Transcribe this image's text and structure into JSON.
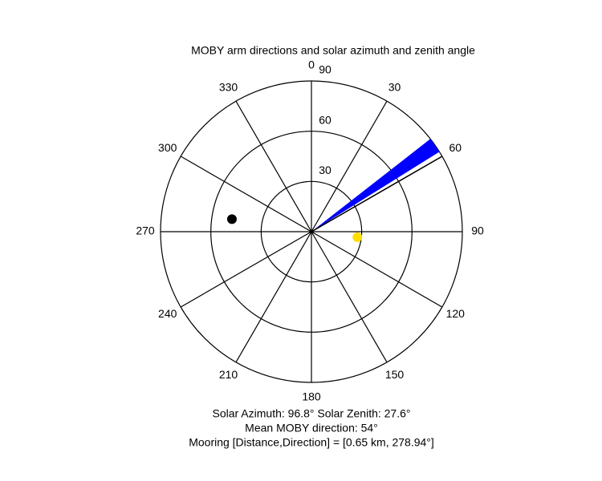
{
  "chart_data": {
    "type": "polar",
    "title": "MOBY arm directions and solar azimuth and zenith angle",
    "zero": "top",
    "direction": "clockwise",
    "rlim": [
      0,
      90
    ],
    "rticks": [
      30,
      60,
      90
    ],
    "thetaticks": [
      0,
      30,
      60,
      90,
      120,
      150,
      180,
      210,
      240,
      270,
      300,
      330
    ],
    "sector": {
      "theta": [
        52,
        58
      ],
      "color": "#0000ff"
    },
    "line": {
      "theta": 60,
      "color": "#000000"
    },
    "points": [
      {
        "theta": 278.94,
        "r": 48,
        "color": "#000000"
      },
      {
        "theta": 96.8,
        "r": 27.6,
        "color": "#ffdd00"
      }
    ],
    "annotations": [
      "Solar Azimuth: 96.8°   Solar Zenith: 27.6°",
      "Mean MOBY direction: 54°",
      "Mooring [Distance,Direction] = [0.65 km, 278.94°]"
    ]
  }
}
